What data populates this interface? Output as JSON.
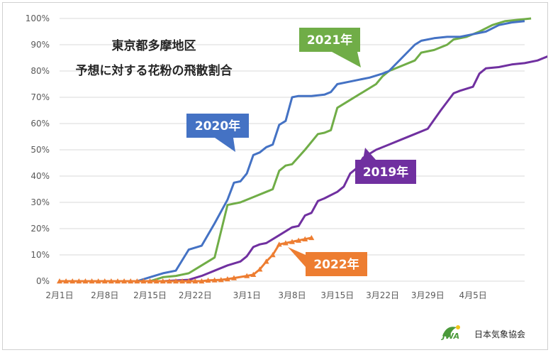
{
  "chart_data": {
    "type": "line",
    "title": [
      "東京都多摩地区",
      "予想に対する花粉の飛散割合"
    ],
    "xlabel": "",
    "ylabel": "",
    "x_ticks": [
      "2月1日",
      "2月8日",
      "2月15日",
      "2月22日",
      "3月1日",
      "3月8日",
      "3月15日",
      "3月22日",
      "3月29日",
      "4月5日"
    ],
    "y_ticks": [
      "0%",
      "10%",
      "20%",
      "30%",
      "40%",
      "50%",
      "60%",
      "70%",
      "80%",
      "90%",
      "100%"
    ],
    "ylim": [
      0,
      100
    ],
    "x_range_days_note": "",
    "grid": true,
    "legend": "callouts",
    "series": [
      {
        "name": "2020年",
        "color": "#4472C4",
        "marker": "none",
        "points": [
          [
            "2月1日",
            0
          ],
          [
            "2月5日",
            0
          ],
          [
            "2月9日",
            0
          ],
          [
            "2月13日",
            0
          ],
          [
            "2月15日",
            1.5
          ],
          [
            "2月17日",
            3
          ],
          [
            "2月19日",
            4
          ],
          [
            "2月21日",
            12
          ],
          [
            "2月23日",
            13.5
          ],
          [
            "2月25日",
            22
          ],
          [
            "2月27日",
            31
          ],
          [
            "2月28日",
            37.5
          ],
          [
            "2月29日",
            38
          ],
          [
            "3月1日",
            41
          ],
          [
            "3月2日",
            48
          ],
          [
            "3月3日",
            49
          ],
          [
            "3月4日",
            51
          ],
          [
            "3月5日",
            52
          ],
          [
            "3月6日",
            59.5
          ],
          [
            "3月7日",
            61
          ],
          [
            "3月8日",
            70
          ],
          [
            "3月9日",
            70.5
          ],
          [
            "3月11日",
            70.5
          ],
          [
            "3月13日",
            71
          ],
          [
            "3月14日",
            72
          ],
          [
            "3月15日",
            75
          ],
          [
            "3月17日",
            76
          ],
          [
            "3月19日",
            77
          ],
          [
            "3月20日",
            77.5
          ],
          [
            "3月22日",
            79
          ],
          [
            "3月23日",
            80
          ],
          [
            "3月25日",
            85
          ],
          [
            "3月27日",
            90
          ],
          [
            "3月28日",
            91.5
          ],
          [
            "3月30日",
            92.5
          ],
          [
            "4月1日",
            93
          ],
          [
            "4月3日",
            93
          ],
          [
            "4月5日",
            94
          ],
          [
            "4月7日",
            95
          ],
          [
            "4月9日",
            97.5
          ],
          [
            "4月11日",
            98.5
          ],
          [
            "4月13日",
            99
          ]
        ]
      },
      {
        "name": "2021年",
        "color": "#70AD47",
        "marker": "none",
        "points": [
          [
            "2月1日",
            0
          ],
          [
            "2月5日",
            0
          ],
          [
            "2月9日",
            0
          ],
          [
            "2月13日",
            0
          ],
          [
            "2月15日",
            0
          ],
          [
            "2月17日",
            1.5
          ],
          [
            "2月19日",
            2
          ],
          [
            "2月21日",
            3
          ],
          [
            "2月23日",
            6
          ],
          [
            "2月25日",
            9
          ],
          [
            "2月27日",
            29
          ],
          [
            "2月29日",
            30
          ],
          [
            "3月2日",
            32
          ],
          [
            "3月4日",
            34
          ],
          [
            "3月5日",
            35
          ],
          [
            "3月6日",
            42
          ],
          [
            "3月7日",
            44
          ],
          [
            "3月8日",
            44.5
          ],
          [
            "3月10日",
            50
          ],
          [
            "3月12日",
            56
          ],
          [
            "3月13日",
            56.5
          ],
          [
            "3月14日",
            57.5
          ],
          [
            "3月15日",
            66
          ],
          [
            "3月17日",
            69
          ],
          [
            "3月19日",
            72
          ],
          [
            "3月21日",
            75
          ],
          [
            "3月22日",
            78
          ],
          [
            "3月23日",
            80
          ],
          [
            "3月25日",
            82
          ],
          [
            "3月27日",
            84
          ],
          [
            "3月28日",
            87
          ],
          [
            "3月30日",
            88
          ],
          [
            "4月1日",
            90
          ],
          [
            "4月2日",
            92
          ],
          [
            "4月4日",
            93
          ],
          [
            "4月6日",
            95
          ],
          [
            "4月8日",
            97.5
          ],
          [
            "4月10日",
            99
          ],
          [
            "4月12日",
            99.5
          ],
          [
            "4月14日",
            100
          ]
        ]
      },
      {
        "name": "2019年",
        "color": "#7030A0",
        "marker": "none",
        "points": [
          [
            "2月1日",
            0
          ],
          [
            "2月5日",
            0
          ],
          [
            "2月9日",
            0
          ],
          [
            "2月13日",
            0
          ],
          [
            "2月17日",
            0
          ],
          [
            "2月21日",
            0.5
          ],
          [
            "2月23日",
            2
          ],
          [
            "2月25日",
            4
          ],
          [
            "2月27日",
            6
          ],
          [
            "2月29日",
            7.5
          ],
          [
            "3月1日",
            9.5
          ],
          [
            "3月2日",
            13
          ],
          [
            "3月3日",
            14
          ],
          [
            "3月4日",
            14.5
          ],
          [
            "3月6日",
            17.5
          ],
          [
            "3月8日",
            20.5
          ],
          [
            "3月9日",
            21
          ],
          [
            "3月10日",
            25
          ],
          [
            "3月11日",
            26
          ],
          [
            "3月12日",
            30.5
          ],
          [
            "3月13日",
            31.5
          ],
          [
            "3月15日",
            34
          ],
          [
            "3月16日",
            36
          ],
          [
            "3月17日",
            41
          ],
          [
            "3月18日",
            43
          ],
          [
            "3月19日",
            47
          ],
          [
            "3月21日",
            50
          ],
          [
            "3月23日",
            52
          ],
          [
            "3月25日",
            54
          ],
          [
            "3月27日",
            56
          ],
          [
            "3月29日",
            58
          ],
          [
            "3月31日",
            65
          ],
          [
            "4月2日",
            71.5
          ],
          [
            "4月3日",
            72.5
          ],
          [
            "4月5日",
            74
          ],
          [
            "4月6日",
            79
          ],
          [
            "4月7日",
            81
          ],
          [
            "4月9日",
            81.5
          ],
          [
            "4月11日",
            82.5
          ],
          [
            "4月13日",
            83
          ],
          [
            "4月15日",
            84
          ],
          [
            "4月17日",
            86
          ],
          [
            "4月19日",
            89.5
          ],
          [
            "4月21日",
            90.5
          ],
          [
            "4月22日",
            91
          ]
        ]
      },
      {
        "name": "2022年",
        "color": "#ED7D31",
        "marker": "triangle",
        "points": [
          [
            "2月1日",
            0
          ],
          [
            "2月2日",
            0
          ],
          [
            "2月3日",
            0
          ],
          [
            "2月4日",
            0
          ],
          [
            "2月5日",
            0
          ],
          [
            "2月6日",
            0
          ],
          [
            "2月7日",
            0
          ],
          [
            "2月8日",
            0
          ],
          [
            "2月9日",
            0
          ],
          [
            "2月10日",
            0
          ],
          [
            "2月11日",
            0
          ],
          [
            "2月12日",
            0
          ],
          [
            "2月13日",
            0
          ],
          [
            "2月14日",
            0
          ],
          [
            "2月15日",
            0
          ],
          [
            "2月16日",
            0
          ],
          [
            "2月17日",
            0
          ],
          [
            "2月18日",
            0
          ],
          [
            "2月19日",
            0
          ],
          [
            "2月20日",
            0
          ],
          [
            "2月21日",
            0
          ],
          [
            "2月22日",
            0
          ],
          [
            "2月23日",
            0
          ],
          [
            "2月24日",
            0.3
          ],
          [
            "2月25日",
            0.4
          ],
          [
            "2月26日",
            0.5
          ],
          [
            "2月27日",
            0.8
          ],
          [
            "2月28日",
            1.2
          ],
          [
            "3月1日",
            2
          ],
          [
            "3月2日",
            2.5
          ],
          [
            "3月3日",
            4.5
          ],
          [
            "3月4日",
            7.5
          ],
          [
            "3月5日",
            10
          ],
          [
            "3月6日",
            14
          ],
          [
            "3月7日",
            14.5
          ],
          [
            "3月8日",
            15
          ],
          [
            "3月9日",
            15.5
          ],
          [
            "3月10日",
            16
          ],
          [
            "3月11日",
            16.5
          ]
        ]
      }
    ],
    "annotations": [
      {
        "series": "2020年",
        "label": "2020年"
      },
      {
        "series": "2021年",
        "label": "2021年"
      },
      {
        "series": "2019年",
        "label": "2019年"
      },
      {
        "series": "2022年",
        "label": "2022年"
      }
    ]
  },
  "logo": {
    "mark_text": "JWA",
    "org_name": "日本気象協会",
    "colors": {
      "mark": "#4a9a3a",
      "mark_accent": "#f0c419"
    }
  }
}
